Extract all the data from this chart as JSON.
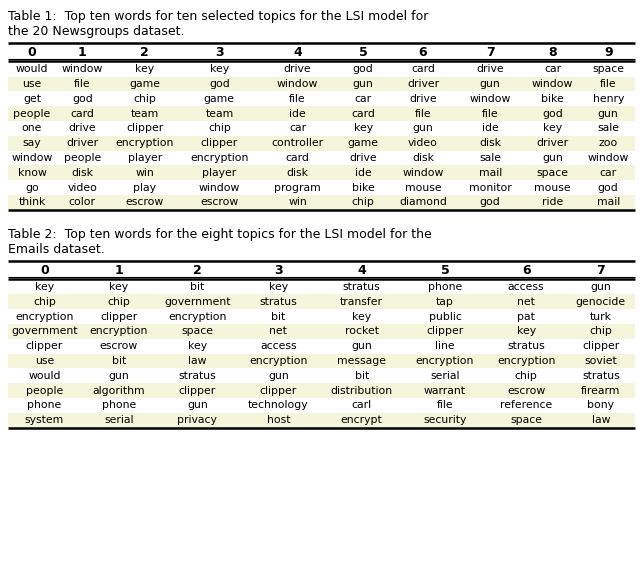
{
  "table1_caption_line1": "Table 1:  Top ten words for ten selected topics for the LSI model for",
  "table1_caption_line2": "the 20 Newsgroups dataset.",
  "table2_caption_line1": "Table 2:  Top ten words for the eight topics for the LSI model for the",
  "table2_caption_line2": "Emails dataset.",
  "table1_headers": [
    "0",
    "1",
    "2",
    "3",
    "4",
    "5",
    "6",
    "7",
    "8",
    "9"
  ],
  "table1_data": [
    [
      "would",
      "window",
      "key",
      "key",
      "drive",
      "god",
      "card",
      "drive",
      "car",
      "space"
    ],
    [
      "use",
      "file",
      "game",
      "god",
      "window",
      "gun",
      "driver",
      "gun",
      "window",
      "file"
    ],
    [
      "get",
      "god",
      "chip",
      "game",
      "file",
      "car",
      "drive",
      "window",
      "bike",
      "henry"
    ],
    [
      "people",
      "card",
      "team",
      "team",
      "ide",
      "card",
      "file",
      "file",
      "god",
      "gun"
    ],
    [
      "one",
      "drive",
      "clipper",
      "chip",
      "car",
      "key",
      "gun",
      "ide",
      "key",
      "sale"
    ],
    [
      "say",
      "driver",
      "encryption",
      "clipper",
      "controller",
      "game",
      "video",
      "disk",
      "driver",
      "zoo"
    ],
    [
      "window",
      "people",
      "player",
      "encryption",
      "card",
      "drive",
      "disk",
      "sale",
      "gun",
      "window"
    ],
    [
      "know",
      "disk",
      "win",
      "player",
      "disk",
      "ide",
      "window",
      "mail",
      "space",
      "car"
    ],
    [
      "go",
      "video",
      "play",
      "window",
      "program",
      "bike",
      "mouse",
      "monitor",
      "mouse",
      "god"
    ],
    [
      "think",
      "color",
      "escrow",
      "escrow",
      "win",
      "chip",
      "diamond",
      "god",
      "ride",
      "mail"
    ]
  ],
  "table2_headers": [
    "0",
    "1",
    "2",
    "3",
    "4",
    "5",
    "6",
    "7"
  ],
  "table2_data": [
    [
      "key",
      "key",
      "bit",
      "key",
      "stratus",
      "phone",
      "access",
      "gun"
    ],
    [
      "chip",
      "chip",
      "government",
      "stratus",
      "transfer",
      "tap",
      "net",
      "genocide"
    ],
    [
      "encryption",
      "clipper",
      "encryption",
      "bit",
      "key",
      "public",
      "pat",
      "turk"
    ],
    [
      "government",
      "encryption",
      "space",
      "net",
      "rocket",
      "clipper",
      "key",
      "chip"
    ],
    [
      "clipper",
      "escrow",
      "key",
      "access",
      "gun",
      "line",
      "stratus",
      "clipper"
    ],
    [
      "use",
      "bit",
      "law",
      "encryption",
      "message",
      "encryption",
      "encryption",
      "soviet"
    ],
    [
      "would",
      "gun",
      "stratus",
      "gun",
      "bit",
      "serial",
      "chip",
      "stratus"
    ],
    [
      "people",
      "algorithm",
      "clipper",
      "clipper",
      "distribution",
      "warrant",
      "escrow",
      "firearm"
    ],
    [
      "phone",
      "phone",
      "gun",
      "technology",
      "carl",
      "file",
      "reference",
      "bony"
    ],
    [
      "system",
      "serial",
      "privacy",
      "host",
      "encrypt",
      "security",
      "space",
      "law"
    ]
  ],
  "stripe_color": "#f5f5dc",
  "text_color": "#000000",
  "caption_fontsize": 9.0,
  "header_fontsize": 9.0,
  "cell_fontsize": 7.8,
  "fig_width": 6.4,
  "fig_height": 5.61,
  "dpi": 100
}
